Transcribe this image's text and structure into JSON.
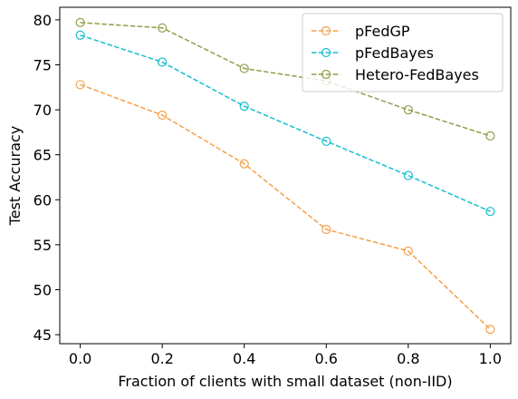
{
  "chart_data": {
    "type": "line",
    "title": "",
    "xlabel": "Fraction of clients with small dataset (non-IID)",
    "ylabel": "Test Accuracy",
    "x": [
      0.0,
      0.2,
      0.4,
      0.6,
      0.8,
      1.0
    ],
    "x_tick_labels": [
      "0.0",
      "0.2",
      "0.4",
      "0.6",
      "0.8",
      "1.0"
    ],
    "y_ticks": [
      45,
      50,
      55,
      60,
      65,
      70,
      75,
      80
    ],
    "xlim": [
      -0.05,
      1.05
    ],
    "ylim": [
      44.0,
      81.4
    ],
    "grid": false,
    "legend_position": "top-right",
    "series": [
      {
        "name": "pFedGP",
        "color": "#f5a04a",
        "marker": "circle-open",
        "line": "dashed",
        "values": [
          72.8,
          69.4,
          64.0,
          56.7,
          54.3,
          45.6
        ]
      },
      {
        "name": "pFedBayes",
        "color": "#17becf",
        "marker": "circle-open",
        "line": "dashed",
        "values": [
          78.3,
          75.3,
          70.4,
          66.5,
          62.7,
          58.7
        ]
      },
      {
        "name": "Hetero-FedBayes",
        "color": "#8c9f4a",
        "marker": "circle-open",
        "line": "dashed",
        "values": [
          79.7,
          79.1,
          74.6,
          73.2,
          70.0,
          67.1
        ]
      }
    ]
  }
}
